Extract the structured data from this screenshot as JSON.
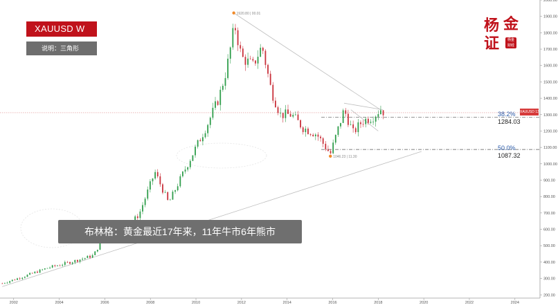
{
  "symbol": "XAUUSD  W",
  "note": "说明：三角形",
  "caption": "布林格：黄金最近17年来，11年牛市6年熊市",
  "seal": {
    "chars": [
      "杨",
      "金",
      "证"
    ],
    "stamp": "杨金 财经"
  },
  "price_tag": "XAUUSD 1311.99",
  "annotations": {
    "high_label": "1920.80 | 00.01",
    "low_label": "1046.23 | 11.30"
  },
  "fib_levels": [
    {
      "pct": "38.2%",
      "value": "1284.03"
    },
    {
      "pct": "50.0%",
      "value": "1087.32"
    }
  ],
  "colors": {
    "up": "#2e9d4a",
    "down": "#c9303a",
    "trend_line": "#bdbdbd",
    "fib_line": "#555555",
    "accent": "#c0121b"
  },
  "chart_data": {
    "type": "candlestick",
    "title": "XAUUSD  W",
    "x_ticks": [
      "2002",
      "2004",
      "2006",
      "2008",
      "2010",
      "2012",
      "2014",
      "2016",
      "2018",
      "2020",
      "2022",
      "2024"
    ],
    "y_ticks": [
      "2000.00",
      "1900.00",
      "1800.00",
      "1700.00",
      "1600.00",
      "1500.00",
      "1400.00",
      "1300.00",
      "1200.00",
      "1100.00",
      "1000.00",
      "900.00",
      "800.00",
      "700.00",
      "600.00",
      "500.00",
      "400.00",
      "300.00",
      "200.00"
    ],
    "ylim": [
      180,
      2000
    ],
    "xlim": [
      2001.4,
      2025.1
    ],
    "price_path": [
      [
        2001.5,
        270
      ],
      [
        2002.5,
        315
      ],
      [
        2003.5,
        365
      ],
      [
        2004.5,
        400
      ],
      [
        2005.5,
        440
      ],
      [
        2006.3,
        640
      ],
      [
        2006.8,
        590
      ],
      [
        2007.5,
        690
      ],
      [
        2008.2,
        950
      ],
      [
        2008.8,
        760
      ],
      [
        2009.5,
        960
      ],
      [
        2010.0,
        1100
      ],
      [
        2010.5,
        1240
      ],
      [
        2011.0,
        1400
      ],
      [
        2011.35,
        1580
      ],
      [
        2011.7,
        1850
      ],
      [
        2012.0,
        1650
      ],
      [
        2012.5,
        1600
      ],
      [
        2012.9,
        1720
      ],
      [
        2013.3,
        1450
      ],
      [
        2013.7,
        1300
      ],
      [
        2014.2,
        1300
      ],
      [
        2014.7,
        1220
      ],
      [
        2015.3,
        1180
      ],
      [
        2015.9,
        1060
      ],
      [
        2016.5,
        1330
      ],
      [
        2016.9,
        1190
      ],
      [
        2017.3,
        1260
      ],
      [
        2017.8,
        1290
      ],
      [
        2018.1,
        1335
      ],
      [
        2018.3,
        1310
      ]
    ],
    "high": {
      "x": 2011.66,
      "y": 1920.8
    },
    "low": {
      "x": 2015.9,
      "y": 1046.23
    },
    "last_price": 1311.99,
    "trend_lines": [
      {
        "from": [
          2011.66,
          1920.8
        ],
        "to": [
          2018.1,
          1330
        ]
      },
      {
        "from": [
          2001.5,
          250
        ],
        "to": [
          2019.9,
          1075
        ]
      },
      {
        "from": [
          2016.5,
          1370
        ],
        "to": [
          2018.2,
          1330
        ]
      },
      {
        "from": [
          2016.8,
          1330
        ],
        "to": [
          2018.0,
          1200
        ]
      }
    ],
    "fib_retracement": [
      {
        "label": "38.2%",
        "value": 1284.03
      },
      {
        "label": "50.0%",
        "value": 1087.32
      }
    ]
  }
}
